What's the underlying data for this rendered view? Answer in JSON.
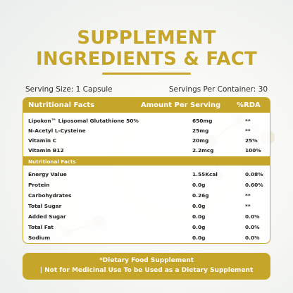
{
  "title": {
    "line1": "SUPPLEMENT",
    "line2": "INGREDIENTS & FACT"
  },
  "serving_size": "Serving Size: 1 Capsule",
  "servings_per_container": "Servings Per Container: 30",
  "table": {
    "headers": [
      "Nutritional Facts",
      "Amount Per Serving",
      "%RDA"
    ],
    "ingredients": [
      {
        "name": "Lipokon™ Liposomal Glutathione 50%",
        "amount": "650mg",
        "rda": "**"
      },
      {
        "name": "N-Acetyl L-Cysteine",
        "amount": "25mg",
        "rda": "**"
      },
      {
        "name": "Vitamin C",
        "amount": "20mg",
        "rda": "25%"
      },
      {
        "name": "Vitamin B12",
        "amount": "2.2mcg",
        "rda": "100%"
      }
    ],
    "subheader": "Nutritional Facts",
    "nutrition": [
      {
        "name": "Energy Value",
        "amount": "1.55Kcal",
        "rda": "0.08%"
      },
      {
        "name": "Protein",
        "amount": "0.0g",
        "rda": "0.60%"
      },
      {
        "name": "Carbohydrates",
        "amount": "0.26g",
        "rda": "**"
      },
      {
        "name": "Total Sugar",
        "amount": "0.0g",
        "rda": "**"
      },
      {
        "name": "Added Sugar",
        "amount": "0.0g",
        "rda": "0.0%"
      },
      {
        "name": "Total Fat",
        "amount": "0.0g",
        "rda": "0.0%"
      },
      {
        "name": "Sodium",
        "amount": "0.0g",
        "rda": "0.0%"
      }
    ]
  },
  "banner": {
    "line1": "*Dietary Food Supplement",
    "line2": "| Not for Medicinal Use To be Used as a Dietary Supplement"
  },
  "colors": {
    "accent": "#c6a52b",
    "text": "#2a2a2a",
    "background": "#f6f6f3"
  }
}
